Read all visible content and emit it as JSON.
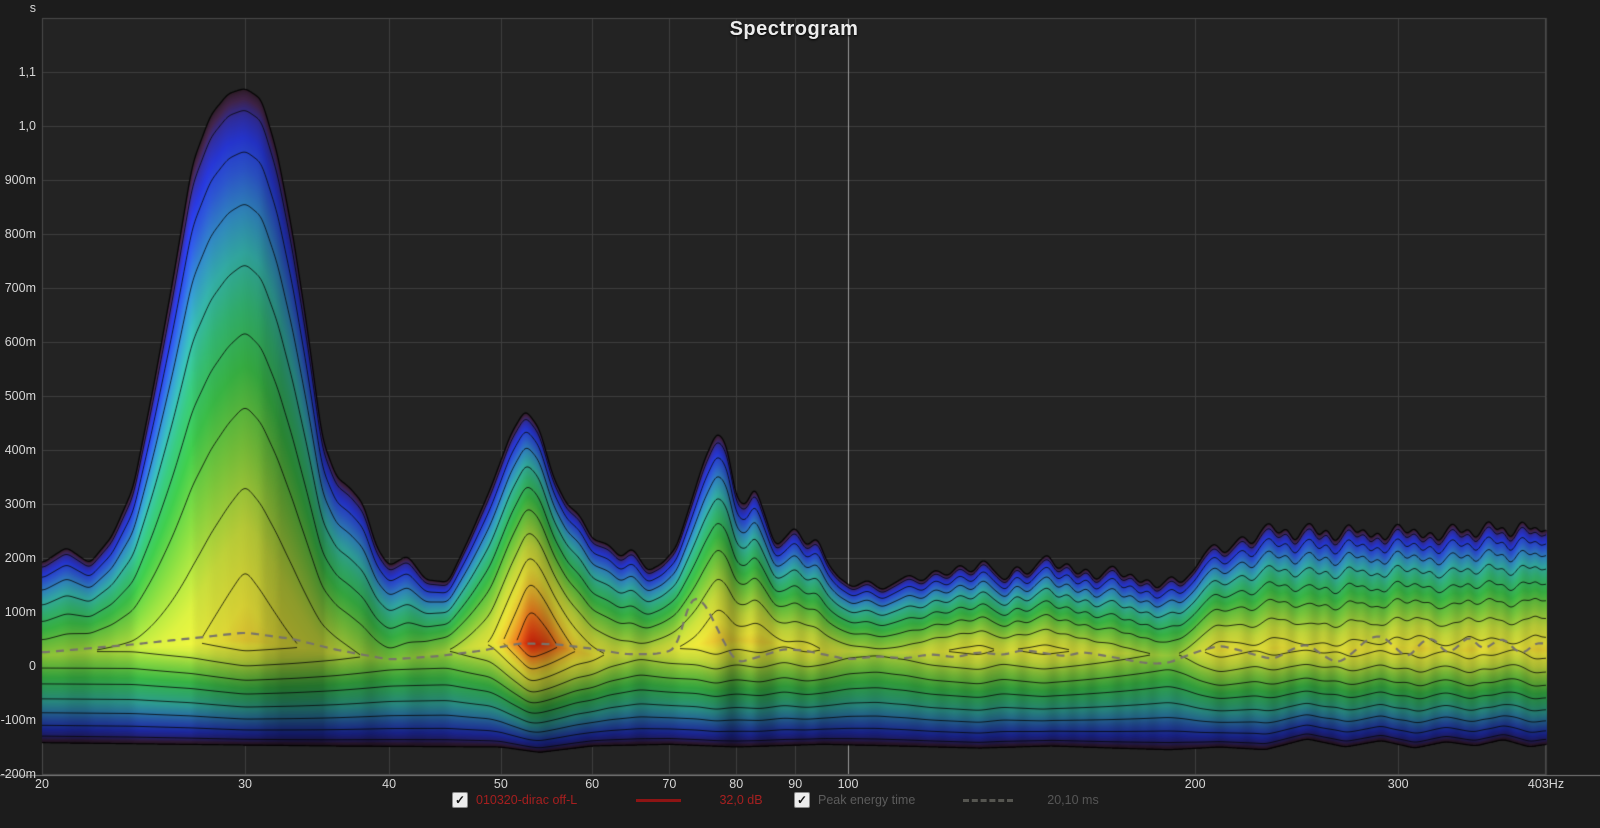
{
  "window": {
    "title": "Spectrogram"
  },
  "colors": {
    "background": "#1c1c1c",
    "plot_background": "#232323",
    "grid": "#3e3e3e",
    "grid_highlight": "#9c9c9c",
    "axis_line": "#7d7d7d",
    "tick_text": "#d6d6d6",
    "title_text": "#ececec",
    "measurement_red": "#a61f1f",
    "legend_gray": "#5c5c5c",
    "contour_line": "#0a0a0a",
    "peak_line": "#78736a"
  },
  "chart_data": {
    "type": "heatmap",
    "subtype": "wavelet-spectrogram-contour",
    "title": "Spectrogram",
    "x_axis": {
      "scale": "log",
      "min": 20,
      "max": 403,
      "unit": "Hz",
      "ticks": [
        {
          "f": 20,
          "label": "20"
        },
        {
          "f": 30,
          "label": "30"
        },
        {
          "f": 40,
          "label": "40"
        },
        {
          "f": 50,
          "label": "50"
        },
        {
          "f": 60,
          "label": "60"
        },
        {
          "f": 70,
          "label": "70"
        },
        {
          "f": 80,
          "label": "80"
        },
        {
          "f": 90,
          "label": "90"
        },
        {
          "f": 100,
          "label": "100"
        },
        {
          "f": 200,
          "label": "200"
        },
        {
          "f": 300,
          "label": "300"
        },
        {
          "f": 403,
          "label": "403Hz"
        }
      ],
      "highlight_gridline_hz": 100
    },
    "y_axis": {
      "unit": "s",
      "min": -0.2,
      "max": 1.2,
      "ticks": [
        {
          "t": 1.1,
          "label": "1,1"
        },
        {
          "t": 1.0,
          "label": "1,0"
        },
        {
          "t": 0.9,
          "label": "900m"
        },
        {
          "t": 0.8,
          "label": "800m"
        },
        {
          "t": 0.7,
          "label": "700m"
        },
        {
          "t": 0.6,
          "label": "600m"
        },
        {
          "t": 0.5,
          "label": "500m"
        },
        {
          "t": 0.4,
          "label": "400m"
        },
        {
          "t": 0.3,
          "label": "300m"
        },
        {
          "t": 0.2,
          "label": "200m"
        },
        {
          "t": 0.1,
          "label": "100m"
        },
        {
          "t": 0.0,
          "label": "0"
        },
        {
          "t": -0.1,
          "label": "-100m"
        },
        {
          "t": -0.2,
          "label": "-200m"
        }
      ]
    },
    "legend": [
      {
        "checked": true,
        "label": "010320-dirac off-L",
        "value": "32,0 dB",
        "color": "#a61f1f",
        "line": "solid"
      },
      {
        "checked": true,
        "label": "Peak energy time",
        "value": "20,10 ms",
        "color": "#5c5c5c",
        "line": "dashed"
      }
    ],
    "contour_levels": [
      0.08,
      0.17,
      0.26,
      0.35,
      0.44,
      0.53,
      0.62,
      0.71,
      0.8,
      0.89
    ],
    "colormap": [
      [
        0.0,
        "#2b1a23"
      ],
      [
        0.045,
        "#3f2347"
      ],
      [
        0.09,
        "#2e2b96"
      ],
      [
        0.14,
        "#2433c8"
      ],
      [
        0.2,
        "#2a51c4"
      ],
      [
        0.27,
        "#2e82b4"
      ],
      [
        0.33,
        "#30a29b"
      ],
      [
        0.4,
        "#2fa86a"
      ],
      [
        0.48,
        "#35aa40"
      ],
      [
        0.57,
        "#72b837"
      ],
      [
        0.66,
        "#b5c736"
      ],
      [
        0.74,
        "#d3cd33"
      ],
      [
        0.82,
        "#d9a82a"
      ],
      [
        0.89,
        "#dd6f1b"
      ],
      [
        0.95,
        "#d43c10"
      ],
      [
        1.0,
        "#c11605"
      ]
    ],
    "envelope": {
      "freq": [
        20,
        21,
        22,
        23,
        24,
        25,
        26,
        27,
        28,
        29,
        30,
        31,
        32,
        33,
        34,
        35,
        36,
        37,
        38,
        39,
        40,
        41.5,
        43,
        45,
        47,
        49,
        51,
        52.5,
        54,
        55.5,
        57,
        58.5,
        60,
        62,
        63.5,
        65,
        67,
        69,
        71,
        73,
        75,
        77,
        78.5,
        80,
        81.5,
        83,
        85,
        86.5,
        88,
        90,
        92,
        94,
        96,
        98,
        101,
        104,
        107,
        110,
        113,
        116,
        119,
        122,
        125,
        128,
        131,
        134,
        137,
        140,
        143,
        146,
        149,
        152,
        155,
        158,
        161,
        164,
        167,
        170,
        173,
        176,
        179,
        182,
        185,
        188,
        191,
        194,
        197,
        200,
        204,
        208,
        212,
        216,
        220,
        224,
        228,
        232,
        236,
        240,
        244,
        248,
        252,
        256,
        260,
        264,
        268,
        272,
        276,
        280,
        284,
        288,
        292,
        296,
        300,
        305,
        310,
        315,
        320,
        325,
        330,
        335,
        340,
        345,
        350,
        355,
        360,
        365,
        370,
        375,
        380,
        385,
        390,
        395,
        400,
        403
      ],
      "top": [
        0.19,
        0.22,
        0.19,
        0.24,
        0.33,
        0.52,
        0.72,
        0.93,
        1.02,
        1.06,
        1.07,
        1.05,
        0.95,
        0.8,
        0.62,
        0.42,
        0.35,
        0.33,
        0.3,
        0.22,
        0.185,
        0.205,
        0.16,
        0.155,
        0.24,
        0.33,
        0.43,
        0.475,
        0.44,
        0.35,
        0.3,
        0.28,
        0.235,
        0.225,
        0.2,
        0.22,
        0.175,
        0.19,
        0.22,
        0.3,
        0.38,
        0.435,
        0.41,
        0.31,
        0.295,
        0.335,
        0.27,
        0.22,
        0.235,
        0.26,
        0.22,
        0.24,
        0.19,
        0.165,
        0.145,
        0.16,
        0.14,
        0.155,
        0.17,
        0.155,
        0.18,
        0.165,
        0.19,
        0.17,
        0.2,
        0.175,
        0.155,
        0.19,
        0.165,
        0.19,
        0.21,
        0.175,
        0.195,
        0.165,
        0.185,
        0.155,
        0.175,
        0.19,
        0.16,
        0.175,
        0.15,
        0.165,
        0.14,
        0.155,
        0.17,
        0.15,
        0.165,
        0.18,
        0.21,
        0.23,
        0.205,
        0.225,
        0.245,
        0.22,
        0.25,
        0.27,
        0.24,
        0.26,
        0.225,
        0.255,
        0.27,
        0.235,
        0.26,
        0.225,
        0.245,
        0.27,
        0.24,
        0.26,
        0.23,
        0.255,
        0.225,
        0.25,
        0.27,
        0.24,
        0.26,
        0.23,
        0.255,
        0.225,
        0.25,
        0.27,
        0.24,
        0.26,
        0.23,
        0.255,
        0.275,
        0.245,
        0.265,
        0.23,
        0.255,
        0.275,
        0.245,
        0.265,
        0.235,
        0.27
      ]
    },
    "bottom": {
      "freq": [
        20,
        35,
        50,
        54,
        60,
        70,
        80,
        95,
        110,
        130,
        150,
        170,
        190,
        210,
        230,
        250,
        270,
        290,
        310,
        330,
        350,
        370,
        390,
        403
      ],
      "time": [
        -0.142,
        -0.148,
        -0.15,
        -0.16,
        -0.148,
        -0.145,
        -0.15,
        -0.145,
        -0.148,
        -0.152,
        -0.148,
        -0.152,
        -0.155,
        -0.15,
        -0.155,
        -0.135,
        -0.15,
        -0.138,
        -0.152,
        -0.14,
        -0.148,
        -0.136,
        -0.15,
        -0.145
      ]
    },
    "amplitude": {
      "freq": [
        20,
        24,
        27,
        30,
        33,
        36,
        40,
        45,
        49,
        52,
        53,
        55,
        58,
        62,
        66,
        70,
        74,
        77,
        80,
        84,
        88,
        92,
        96,
        100,
        106,
        112,
        118,
        124,
        130,
        136,
        142,
        148,
        154,
        160,
        166,
        172,
        178,
        184,
        190,
        196,
        202,
        210,
        218,
        226,
        234,
        242,
        250,
        258,
        266,
        274,
        282,
        290,
        298,
        306,
        314,
        322,
        330,
        338,
        346,
        354,
        362,
        370,
        378,
        386,
        394,
        403
      ],
      "value": [
        0.6,
        0.64,
        0.7,
        0.78,
        0.72,
        0.66,
        0.58,
        0.62,
        0.72,
        0.92,
        1.0,
        0.94,
        0.8,
        0.7,
        0.66,
        0.7,
        0.74,
        0.8,
        0.76,
        0.78,
        0.72,
        0.74,
        0.7,
        0.66,
        0.64,
        0.66,
        0.7,
        0.72,
        0.74,
        0.7,
        0.72,
        0.74,
        0.72,
        0.7,
        0.68,
        0.66,
        0.64,
        0.62,
        0.6,
        0.64,
        0.7,
        0.76,
        0.74,
        0.72,
        0.76,
        0.74,
        0.72,
        0.74,
        0.72,
        0.76,
        0.74,
        0.72,
        0.76,
        0.74,
        0.78,
        0.74,
        0.72,
        0.74,
        0.78,
        0.74,
        0.76,
        0.74,
        0.72,
        0.74,
        0.78,
        0.76
      ]
    },
    "core_time": {
      "freq": [
        20,
        30,
        40,
        50,
        55,
        60,
        70,
        78,
        85,
        95,
        110,
        130,
        150,
        170,
        190,
        210,
        240,
        270,
        300,
        340,
        380,
        403
      ],
      "time": [
        0.02,
        0.05,
        0.01,
        0.045,
        0.04,
        0.02,
        0.03,
        0.05,
        0.045,
        0.03,
        0.025,
        0.03,
        0.03,
        0.025,
        0.02,
        0.03,
        0.035,
        0.03,
        0.035,
        0.03,
        0.035,
        0.03
      ]
    },
    "peak_energy_time": {
      "freq": [
        20,
        24,
        28,
        30,
        33,
        36,
        40,
        44,
        48,
        52,
        56,
        60,
        64,
        68,
        71,
        73,
        75,
        78,
        80,
        84,
        88,
        92,
        96,
        100,
        106,
        112,
        118,
        124,
        130,
        136,
        142,
        148,
        154,
        160,
        166,
        172,
        178,
        184,
        190,
        196,
        202,
        210,
        218,
        226,
        234,
        242,
        250,
        258,
        266,
        274,
        282,
        290,
        298,
        306,
        314,
        322,
        330,
        338,
        346,
        354,
        362,
        370,
        378,
        386,
        394,
        403
      ],
      "time": [
        0.025,
        0.04,
        0.055,
        0.062,
        0.05,
        0.03,
        0.012,
        0.018,
        0.028,
        0.042,
        0.04,
        0.032,
        0.022,
        0.022,
        0.03,
        0.13,
        0.12,
        0.045,
        0.005,
        0.018,
        0.032,
        0.028,
        0.02,
        0.012,
        0.018,
        0.014,
        0.022,
        0.016,
        0.026,
        0.02,
        0.03,
        0.024,
        0.018,
        0.026,
        0.02,
        0.014,
        0.008,
        0.004,
        0.006,
        0.018,
        0.028,
        0.038,
        0.03,
        0.02,
        0.012,
        0.03,
        0.042,
        0.02,
        0.004,
        0.024,
        0.05,
        0.058,
        0.035,
        0.012,
        0.045,
        0.055,
        0.02,
        0.035,
        0.06,
        0.028,
        0.04,
        0.055,
        0.03,
        0.02,
        0.045,
        0.04
      ]
    }
  }
}
